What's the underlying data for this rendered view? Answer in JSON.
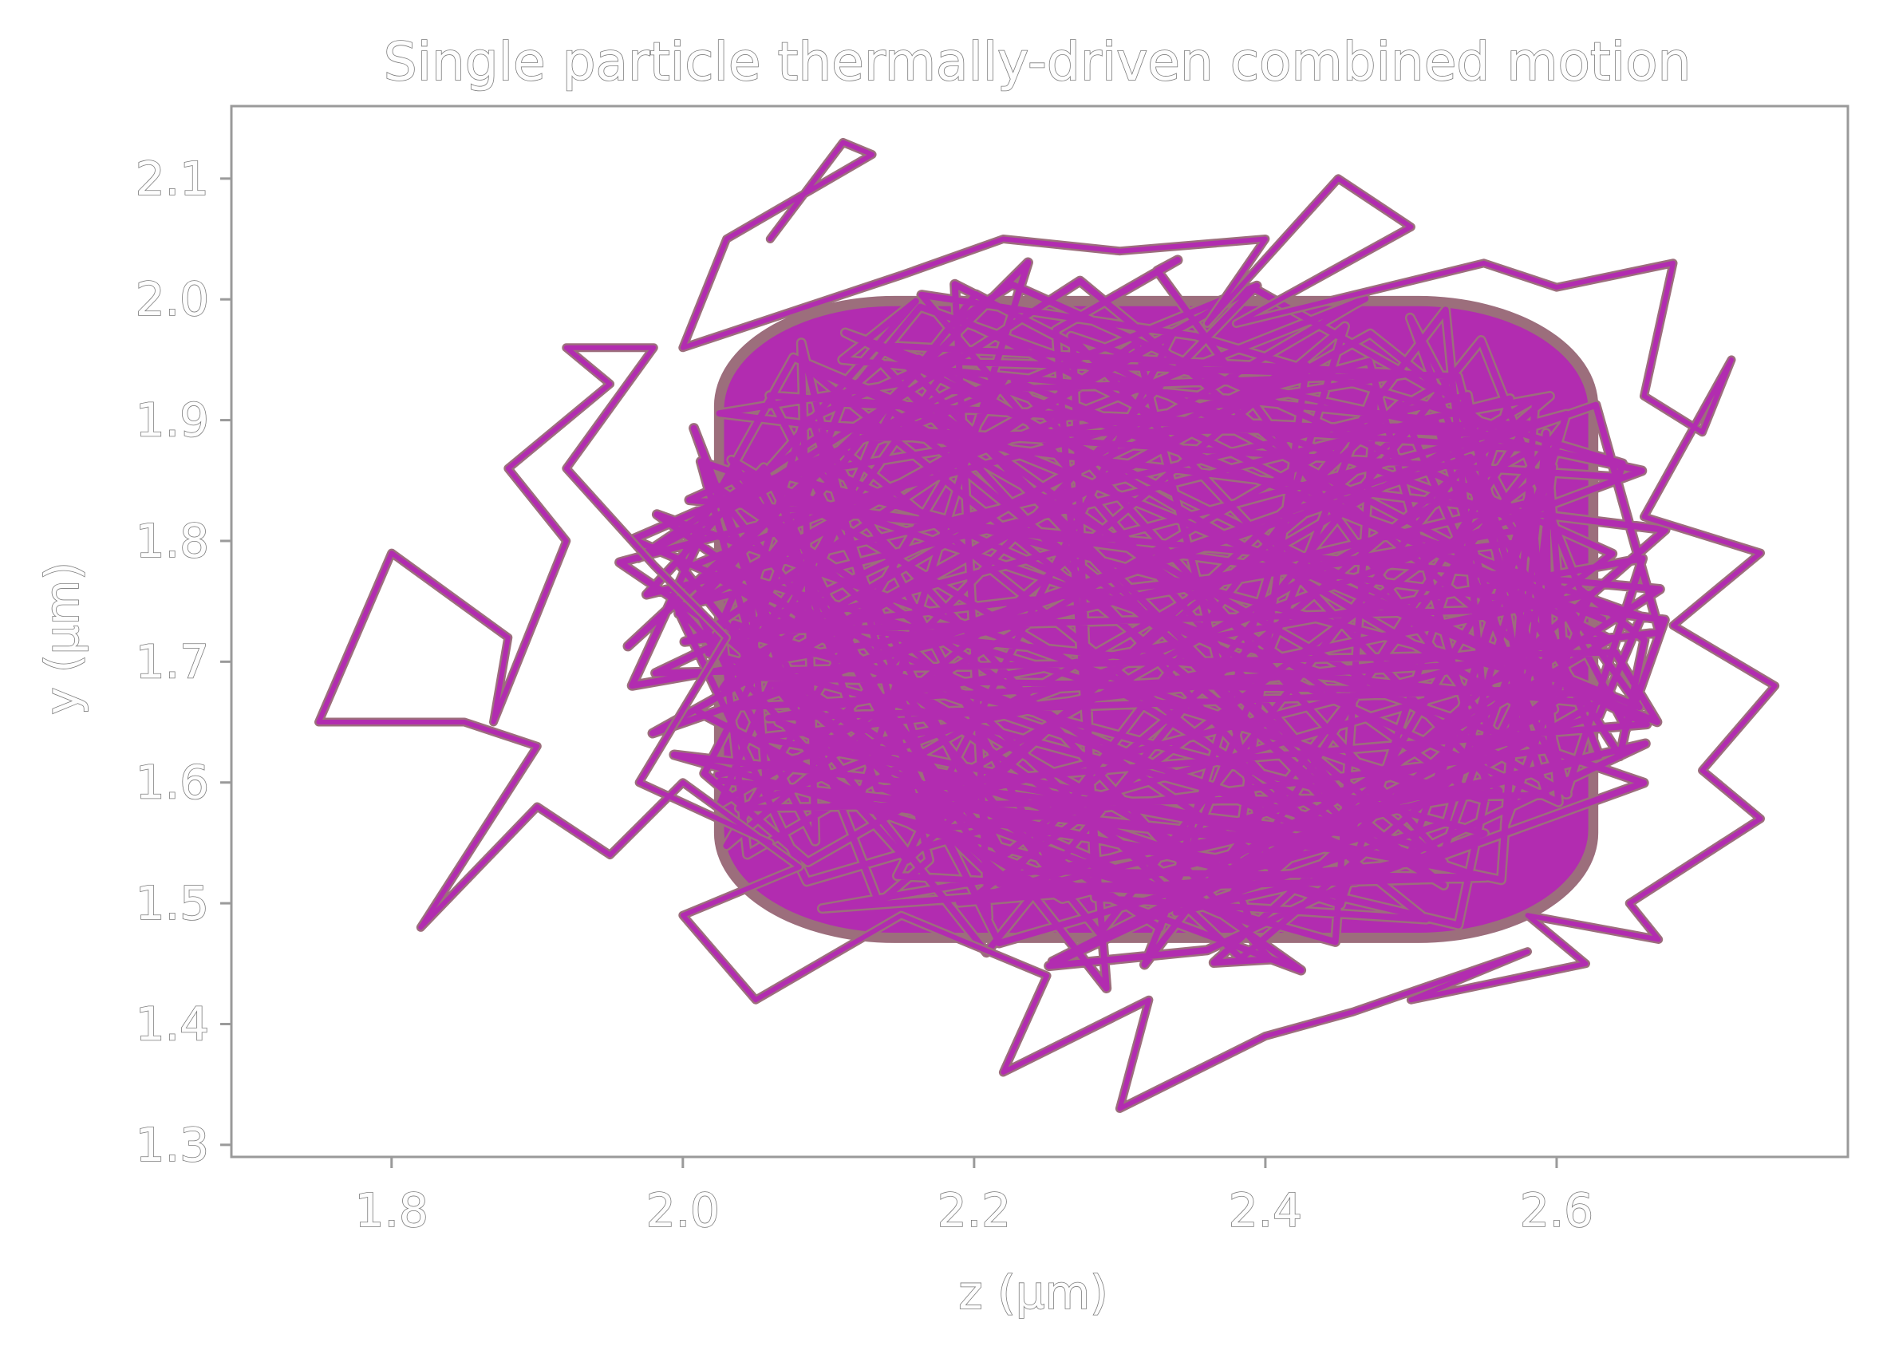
{
  "chart_data": {
    "type": "line",
    "title": "Single particle thermally-driven combined motion",
    "xlabel": "z (µm)",
    "ylabel": "y (µm)",
    "xlim": [
      1.69,
      2.8
    ],
    "ylim": [
      1.29,
      2.16
    ],
    "xticks": [
      "1.8",
      "2.0",
      "2.2",
      "2.4",
      "2.6"
    ],
    "xtick_values": [
      1.8,
      2.0,
      2.2,
      2.4,
      2.6
    ],
    "yticks": [
      "1.3",
      "1.4",
      "1.5",
      "1.6",
      "1.7",
      "1.8",
      "1.9",
      "2.0",
      "2.1"
    ],
    "ytick_values": [
      1.3,
      1.4,
      1.5,
      1.6,
      1.7,
      1.8,
      1.9,
      2.0,
      2.1
    ],
    "grid": false,
    "legend": "none",
    "series": [
      {
        "color": "#b22cb0",
        "outline_color": "#9c6e7c",
        "core_region": {
          "z": [
            1.98,
            2.67
          ],
          "y": [
            1.45,
            2.02
          ]
        },
        "excursion_path": {
          "z": [
            2.06,
            2.11,
            2.13,
            2.03,
            2.0,
            2.15,
            2.22,
            2.3,
            2.4,
            2.36,
            2.45,
            2.5,
            2.38,
            2.55,
            2.6,
            2.68,
            2.66,
            2.7,
            2.72,
            2.66,
            2.74,
            2.68,
            2.75,
            2.7,
            2.74,
            2.65,
            2.67,
            2.58,
            2.62,
            2.5,
            2.58,
            2.46,
            2.4,
            2.3,
            2.32,
            2.22,
            2.25,
            2.15,
            2.05,
            2.0,
            2.08,
            2.0,
            1.95,
            1.9,
            1.82,
            1.9,
            1.85,
            1.75,
            1.8,
            1.88,
            1.87,
            1.92,
            1.88,
            1.95,
            1.92,
            1.98,
            1.92,
            1.98,
            2.03,
            1.97,
            2.06
          ],
          "y": [
            2.05,
            2.13,
            2.12,
            2.05,
            1.96,
            2.02,
            2.05,
            2.04,
            2.05,
            1.98,
            2.1,
            2.06,
            1.98,
            2.03,
            2.01,
            2.03,
            1.92,
            1.89,
            1.95,
            1.82,
            1.79,
            1.73,
            1.68,
            1.61,
            1.57,
            1.5,
            1.47,
            1.49,
            1.45,
            1.42,
            1.46,
            1.41,
            1.39,
            1.33,
            1.42,
            1.36,
            1.44,
            1.49,
            1.42,
            1.49,
            1.53,
            1.6,
            1.54,
            1.58,
            1.48,
            1.63,
            1.65,
            1.65,
            1.79,
            1.72,
            1.65,
            1.8,
            1.86,
            1.93,
            1.96,
            1.96,
            1.86,
            1.78,
            1.72,
            1.6,
            1.55
          ]
        }
      }
    ]
  }
}
